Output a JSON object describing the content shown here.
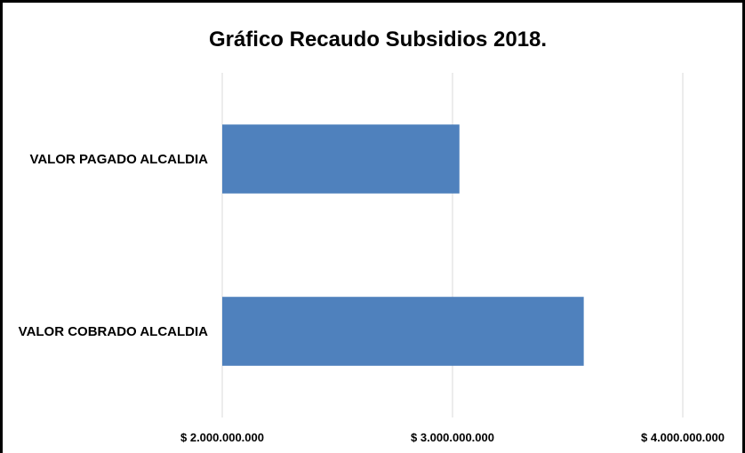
{
  "chart_data": {
    "type": "bar",
    "orientation": "horizontal",
    "title": "Gráfico Recaudo Subsidios 2018.",
    "categories": [
      "VALOR PAGADO ALCALDIA",
      "VALOR COBRADO ALCALDIA"
    ],
    "values": [
      3030000000,
      3570000000
    ],
    "xlim": [
      2000000000,
      4000000000
    ],
    "ticks": [
      2000000000,
      3000000000,
      4000000000
    ],
    "tick_labels": [
      "$ 2.000.000.000",
      "$ 3.000.000.000",
      "$ 4.000.000.000"
    ],
    "bar_color": "#4f81bd",
    "grid": true,
    "legend": "none",
    "xlabel": "",
    "ylabel": ""
  }
}
